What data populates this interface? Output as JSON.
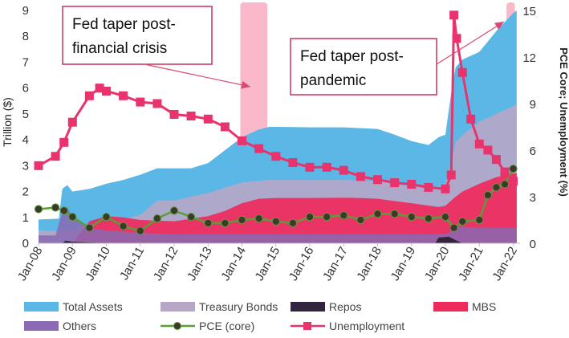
{
  "chart_data": {
    "type": "area",
    "xlabel": "",
    "ylabel": "Trillion ($)",
    "y2label": "PCE Core; Unemployment (%)",
    "x_tick_labels": [
      "Jan-08",
      "Jan-09",
      "Jan-10",
      "Jan-11",
      "Jan-12",
      "Jan-13",
      "Jan-14",
      "Jan-15",
      "Jan-16",
      "Jan-17",
      "Jan-18",
      "Jan-19",
      "Jan-20",
      "Jan-21",
      "Jan-22"
    ],
    "xlim": [
      2008.0,
      2022.2
    ],
    "ylim": [
      0,
      9
    ],
    "y2lim": [
      0,
      15
    ],
    "y_ticks": [
      "0",
      "1",
      "2",
      "3",
      "4",
      "5",
      "6",
      "7",
      "8",
      "9"
    ],
    "y2_ticks": [
      "0",
      "3",
      "6",
      "9",
      "12",
      "15"
    ],
    "grid": false,
    "legend_position": "bottom",
    "colors": {
      "total_assets": "#5bb8e6",
      "treasury": "#b7a6c6",
      "repos": "#32233f",
      "mbs": "#ee2a5c",
      "others": "#8a6ab2",
      "pce": "#5a9e3a",
      "pce_marker": "#3c3a2a",
      "unemployment": "#e8336c",
      "taper_band": "#f7a5bc"
    },
    "series": [
      {
        "name": "Total Assets",
        "axis": "left",
        "x": [
          2008.0,
          2008.6,
          2008.7,
          2008.85,
          2009.0,
          2009.5,
          2010.0,
          2010.5,
          2011.0,
          2011.5,
          2012.0,
          2012.5,
          2013.0,
          2013.5,
          2014.0,
          2014.5,
          2014.8,
          2015.0,
          2016.0,
          2017.0,
          2018.0,
          2018.5,
          2019.0,
          2019.5,
          2019.8,
          2020.0,
          2020.2,
          2020.3,
          2020.5,
          2021.0,
          2021.5,
          2022.0,
          2022.1
        ],
        "values": [
          0.92,
          0.95,
          2.1,
          2.25,
          2.0,
          2.1,
          2.3,
          2.45,
          2.65,
          2.9,
          2.9,
          2.9,
          3.1,
          3.6,
          4.1,
          4.4,
          4.5,
          4.5,
          4.48,
          4.48,
          4.42,
          4.2,
          3.95,
          3.8,
          4.1,
          4.2,
          6.1,
          6.8,
          7.1,
          7.4,
          8.2,
          8.9,
          9.0
        ]
      },
      {
        "name": "Treasury Bonds",
        "axis": "left",
        "x": [
          2008.0,
          2008.5,
          2009.0,
          2009.5,
          2010.0,
          2011.0,
          2011.5,
          2012.0,
          2013.0,
          2014.0,
          2014.8,
          2016.0,
          2017.0,
          2018.0,
          2019.0,
          2019.6,
          2020.0,
          2020.3,
          2020.6,
          2021.0,
          2021.5,
          2022.0,
          2022.1
        ],
        "values": [
          0.5,
          0.47,
          0.48,
          0.75,
          0.77,
          1.1,
          1.65,
          1.65,
          1.95,
          2.35,
          2.45,
          2.45,
          2.45,
          2.4,
          2.2,
          2.1,
          2.3,
          3.9,
          4.3,
          4.7,
          5.0,
          5.3,
          5.4
        ]
      },
      {
        "name": "Repos",
        "axis": "left",
        "x": [
          2008.0,
          2008.7,
          2008.8,
          2009.0,
          2010.0,
          2019.7,
          2019.8,
          2020.1,
          2020.3,
          2020.5,
          2022.1
        ],
        "values": [
          0.0,
          0.0,
          0.1,
          0.06,
          0.0,
          0.0,
          0.22,
          0.25,
          0.12,
          0.0,
          0.0
        ]
      },
      {
        "name": "MBS",
        "axis": "left",
        "x": [
          2008.0,
          2009.0,
          2009.5,
          2010.0,
          2010.5,
          2011.0,
          2012.0,
          2013.0,
          2013.5,
          2014.0,
          2014.5,
          2015.0,
          2016.0,
          2017.0,
          2017.5,
          2018.0,
          2019.0,
          2019.8,
          2020.0,
          2020.3,
          2020.5,
          2021.0,
          2021.5,
          2022.0,
          2022.1
        ],
        "values": [
          0.0,
          0.0,
          0.85,
          1.05,
          1.0,
          0.9,
          0.85,
          1.05,
          1.25,
          1.55,
          1.72,
          1.75,
          1.75,
          1.76,
          1.75,
          1.72,
          1.55,
          1.4,
          1.45,
          1.8,
          2.0,
          2.3,
          2.55,
          2.7,
          2.7
        ]
      },
      {
        "name": "Others",
        "axis": "left",
        "x": [
          2008.0,
          2008.5,
          2008.7,
          2008.85,
          2009.0,
          2009.5,
          2010.0,
          2011.0,
          2012.0,
          2013.0,
          2014.0,
          2015.0,
          2016.0,
          2017.0,
          2018.0,
          2019.0,
          2020.0,
          2020.2,
          2020.4,
          2021.0,
          2021.5,
          2022.0,
          2022.1
        ],
        "values": [
          0.3,
          0.3,
          1.2,
          1.4,
          1.0,
          0.6,
          0.5,
          0.4,
          0.35,
          0.35,
          0.35,
          0.35,
          0.35,
          0.35,
          0.35,
          0.35,
          0.35,
          0.5,
          0.65,
          0.6,
          0.6,
          0.6,
          0.6
        ]
      },
      {
        "name": "PCE (core)",
        "axis": "right",
        "x": [
          2008.0,
          2008.5,
          2008.75,
          2009.0,
          2009.5,
          2010.0,
          2010.5,
          2011.0,
          2011.5,
          2012.0,
          2012.5,
          2013.0,
          2013.5,
          2014.0,
          2014.5,
          2015.0,
          2015.5,
          2016.0,
          2016.5,
          2017.0,
          2017.5,
          2018.0,
          2018.5,
          2019.0,
          2019.5,
          2020.0,
          2020.25,
          2020.5,
          2021.0,
          2021.25,
          2021.5,
          2021.75,
          2022.0
        ],
        "values": [
          2.2,
          2.3,
          2.1,
          1.7,
          1.0,
          1.7,
          1.1,
          0.8,
          1.6,
          2.1,
          1.7,
          1.3,
          1.3,
          1.5,
          1.6,
          1.4,
          1.3,
          1.7,
          1.7,
          1.8,
          1.5,
          1.9,
          1.9,
          1.7,
          1.6,
          1.7,
          1.0,
          1.4,
          1.5,
          3.1,
          3.6,
          3.8,
          4.8
        ]
      },
      {
        "name": "Unemployment",
        "axis": "right",
        "x": [
          2008.0,
          2008.5,
          2008.75,
          2009.0,
          2009.5,
          2009.8,
          2010.0,
          2010.5,
          2011.0,
          2011.5,
          2012.0,
          2012.5,
          2013.0,
          2013.5,
          2014.0,
          2014.5,
          2015.0,
          2015.5,
          2016.0,
          2016.5,
          2017.0,
          2017.5,
          2018.0,
          2018.5,
          2019.0,
          2019.5,
          2020.0,
          2020.17,
          2020.25,
          2020.33,
          2020.5,
          2020.75,
          2021.0,
          2021.25,
          2021.5,
          2021.75,
          2022.0
        ],
        "values": [
          5.0,
          5.6,
          6.5,
          7.8,
          9.5,
          10.0,
          9.8,
          9.5,
          9.1,
          9.0,
          8.3,
          8.2,
          8.0,
          7.5,
          6.6,
          6.1,
          5.6,
          5.2,
          4.9,
          4.9,
          4.7,
          4.3,
          4.1,
          3.9,
          3.8,
          3.6,
          3.5,
          4.4,
          14.7,
          13.2,
          11.0,
          8.0,
          6.4,
          6.0,
          5.4,
          4.6,
          4.0
        ]
      }
    ],
    "bands": [
      {
        "x_start": 2013.95,
        "x_end": 2014.75
      },
      {
        "x_start": 2021.8,
        "x_end": 2022.05
      }
    ],
    "annotations": [
      {
        "id": "crisis",
        "lines": [
          "Fed taper post-",
          "financial crisis"
        ]
      },
      {
        "id": "pandemic",
        "lines": [
          "Fed taper post-",
          "pandemic"
        ]
      }
    ]
  }
}
